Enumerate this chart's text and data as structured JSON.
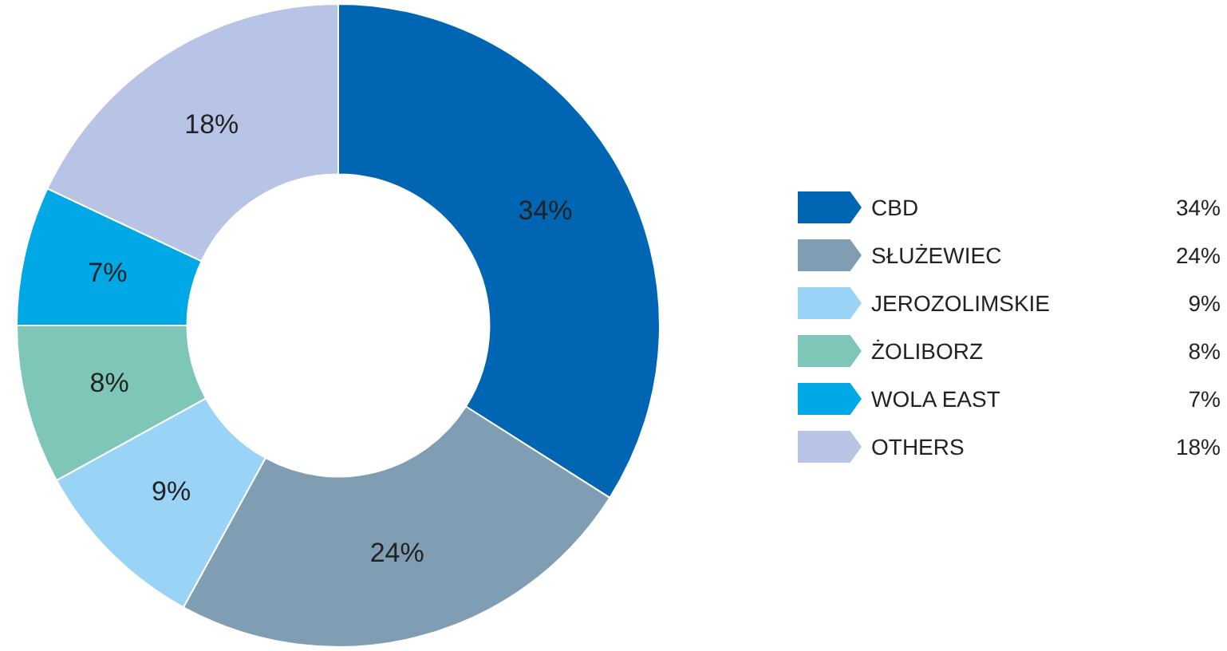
{
  "chart_data": {
    "type": "donut",
    "categories": [
      "CBD",
      "SŁUŻEWIEC",
      "JEROZOLIMSKIE",
      "ŻOLIBORZ",
      "WOLA EAST",
      "OTHERS"
    ],
    "values": [
      34,
      24,
      9,
      8,
      7,
      18
    ],
    "value_labels": [
      "34%",
      "24%",
      "9%",
      "8%",
      "7%",
      "18%"
    ],
    "colors": [
      "#0066b3",
      "#7f9db3",
      "#99d3f5",
      "#7ec6b8",
      "#00a9e6",
      "#b8c4e6"
    ],
    "legend": "right"
  }
}
